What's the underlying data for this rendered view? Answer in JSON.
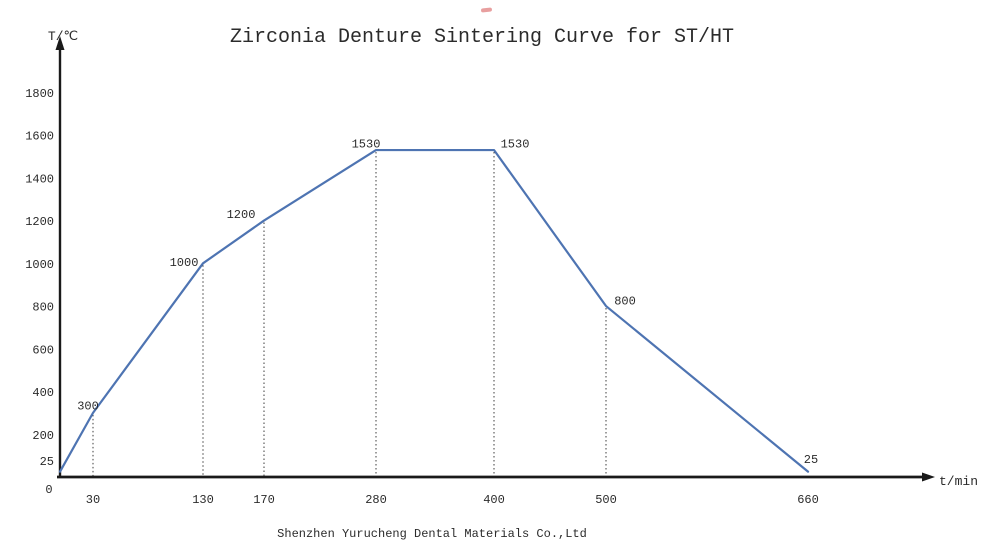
{
  "footer": {
    "company": "Shenzhen Yurucheng Dental Materials Co.,Ltd"
  },
  "chart_data": {
    "type": "line",
    "title": "Zirconia Denture Sintering Curve for ST/HT",
    "xlabel": "t/min",
    "ylabel": "T/℃",
    "x": [
      0,
      30,
      130,
      170,
      280,
      400,
      500,
      660
    ],
    "y": [
      25,
      300,
      1000,
      1200,
      1530,
      1530,
      800,
      25
    ],
    "point_labels": [
      "",
      "300",
      "1000",
      "1200",
      "1530",
      "1530",
      "800",
      "25"
    ],
    "x_ticks": [
      "30",
      "130",
      "170",
      "280",
      "400",
      "500",
      "660"
    ],
    "y_ticks": [
      "1800",
      "1600",
      "1400",
      "1200",
      "1000",
      "800",
      "600",
      "400",
      "200",
      "25"
    ],
    "origin_tick": "0",
    "ylim": [
      0,
      1900
    ],
    "xlim": [
      0,
      780
    ],
    "grid": false,
    "drop_lines": "dotted vertical lines from labeled vertices (t=30,130,170,280,400,500) down to the x-axis",
    "legend": "none",
    "colors": {
      "line": "#4e74b2",
      "axis": "#1a1a1a",
      "text": "#2b2b2b",
      "drop_line": "#3c3c3c",
      "red_mark": "#cc2a2a"
    }
  }
}
